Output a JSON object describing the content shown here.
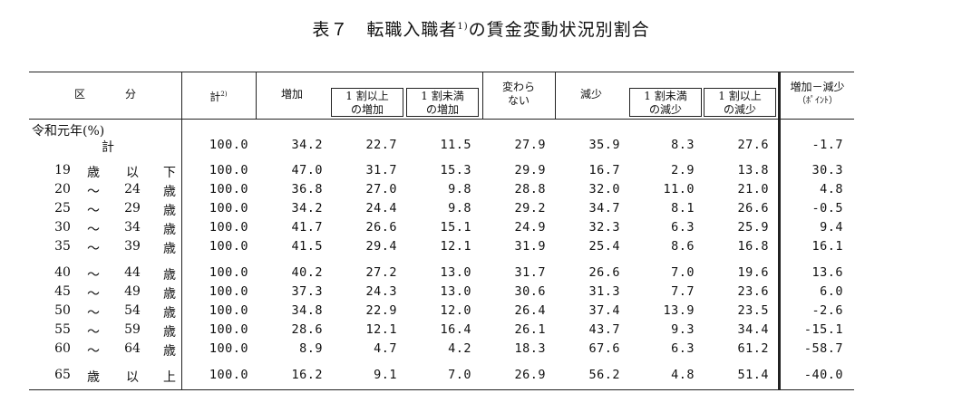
{
  "title": {
    "main": "表７　転職入職者",
    "sup": "1)",
    "rest": "の賃金変動状況別割合"
  },
  "header": {
    "category": [
      "区",
      "分"
    ],
    "total": "計",
    "total_sup": "2)",
    "increase": "増加",
    "inc_10_up": [
      "1 割以上",
      "の増加"
    ],
    "inc_under_10": [
      "1 割未満",
      "の増加"
    ],
    "unchanged": [
      "変わら",
      "ない"
    ],
    "decrease": "減少",
    "dec_under_10": [
      "1 割未満",
      "の減少"
    ],
    "dec_10_up": [
      "1 割以上",
      "の減少"
    ],
    "net": [
      "増加－減少",
      "（ﾎﾟｲﾝﾄ）"
    ]
  },
  "section_label": "令和元年(%)",
  "rows": [
    {
      "label": [
        "計"
      ],
      "values": [
        "100.0",
        "34.2",
        "22.7",
        "11.5",
        "27.9",
        "35.9",
        "8.3",
        "27.6",
        "-1.7"
      ]
    },
    {
      "label": [
        "19",
        "歳",
        "以",
        "下"
      ],
      "values": [
        "100.0",
        "47.0",
        "31.7",
        "15.3",
        "29.9",
        "16.7",
        "2.9",
        "13.8",
        "30.3"
      ]
    },
    {
      "label": [
        "20",
        "～",
        "24",
        "歳"
      ],
      "values": [
        "100.0",
        "36.8",
        "27.0",
        "9.8",
        "28.8",
        "32.0",
        "11.0",
        "21.0",
        "4.8"
      ]
    },
    {
      "label": [
        "25",
        "～",
        "29",
        "歳"
      ],
      "values": [
        "100.0",
        "34.2",
        "24.4",
        "9.8",
        "29.2",
        "34.7",
        "8.1",
        "26.6",
        "-0.5"
      ]
    },
    {
      "label": [
        "30",
        "～",
        "34",
        "歳"
      ],
      "values": [
        "100.0",
        "41.7",
        "26.6",
        "15.1",
        "24.9",
        "32.3",
        "6.3",
        "25.9",
        "9.4"
      ]
    },
    {
      "label": [
        "35",
        "～",
        "39",
        "歳"
      ],
      "values": [
        "100.0",
        "41.5",
        "29.4",
        "12.1",
        "31.9",
        "25.4",
        "8.6",
        "16.8",
        "16.1"
      ]
    },
    {
      "label": [
        "40",
        "～",
        "44",
        "歳"
      ],
      "values": [
        "100.0",
        "40.2",
        "27.2",
        "13.0",
        "31.7",
        "26.6",
        "7.0",
        "19.6",
        "13.6"
      ]
    },
    {
      "label": [
        "45",
        "～",
        "49",
        "歳"
      ],
      "values": [
        "100.0",
        "37.3",
        "24.3",
        "13.0",
        "30.6",
        "31.3",
        "7.7",
        "23.6",
        "6.0"
      ]
    },
    {
      "label": [
        "50",
        "～",
        "54",
        "歳"
      ],
      "values": [
        "100.0",
        "34.8",
        "22.9",
        "12.0",
        "26.4",
        "37.4",
        "13.9",
        "23.5",
        "-2.6"
      ]
    },
    {
      "label": [
        "55",
        "～",
        "59",
        "歳"
      ],
      "values": [
        "100.0",
        "28.6",
        "12.1",
        "16.4",
        "26.1",
        "43.7",
        "9.3",
        "34.4",
        "-15.1"
      ]
    },
    {
      "label": [
        "60",
        "～",
        "64",
        "歳"
      ],
      "values": [
        "100.0",
        "8.9",
        "4.7",
        "4.2",
        "18.3",
        "67.6",
        "6.3",
        "61.2",
        "-58.7"
      ]
    },
    {
      "label": [
        "65",
        "歳",
        "以",
        "上"
      ],
      "values": [
        "100.0",
        "16.2",
        "9.1",
        "7.0",
        "26.9",
        "56.2",
        "4.8",
        "51.4",
        "-40.0"
      ]
    }
  ]
}
